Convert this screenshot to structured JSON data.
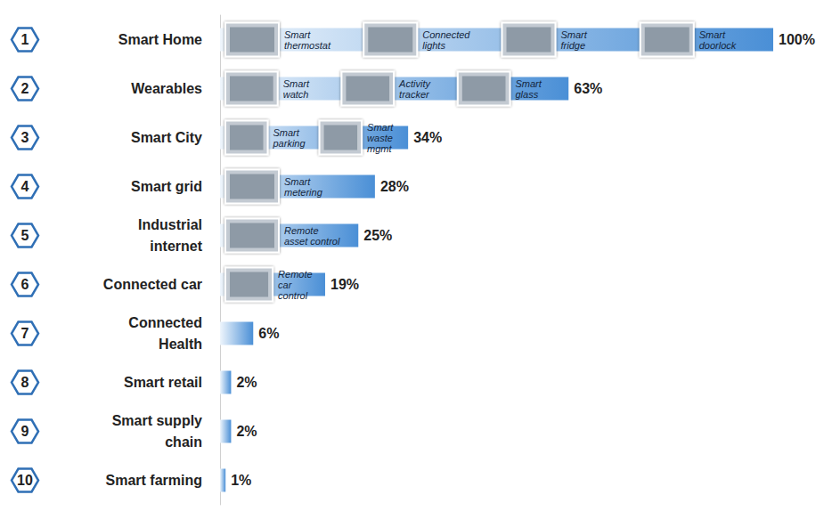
{
  "chart_data": {
    "type": "bar",
    "orientation": "horizontal",
    "categories": [
      "Smart Home",
      "Wearables",
      "Smart City",
      "Smart grid",
      "Industrial internet",
      "Connected car",
      "Connected Health",
      "Smart retail",
      "Smart supply chain",
      "Smart farming"
    ],
    "ranks": [
      1,
      2,
      3,
      4,
      5,
      6,
      7,
      8,
      9,
      10
    ],
    "values": [
      100,
      63,
      34,
      28,
      25,
      19,
      6,
      2,
      2,
      1
    ],
    "value_labels": [
      "100%",
      "63%",
      "34%",
      "28%",
      "25%",
      "19%",
      "6%",
      "2%",
      "2%",
      "1%"
    ],
    "examples": [
      [
        "Smart thermostat",
        "Connected lights",
        "Smart fridge",
        "Smart doorlock"
      ],
      [
        "Smart watch",
        "Activity tracker",
        "Smart glass"
      ],
      [
        "Smart parking",
        "Smart waste mgmt"
      ],
      [
        "Smart metering"
      ],
      [
        "Remote asset control"
      ],
      [
        "Remote car control"
      ],
      [],
      [],
      [],
      []
    ],
    "xlim": [
      0,
      100
    ],
    "color": "#4a8fd6",
    "data_labels": true,
    "tick_labels": "y",
    "grid": false
  }
}
